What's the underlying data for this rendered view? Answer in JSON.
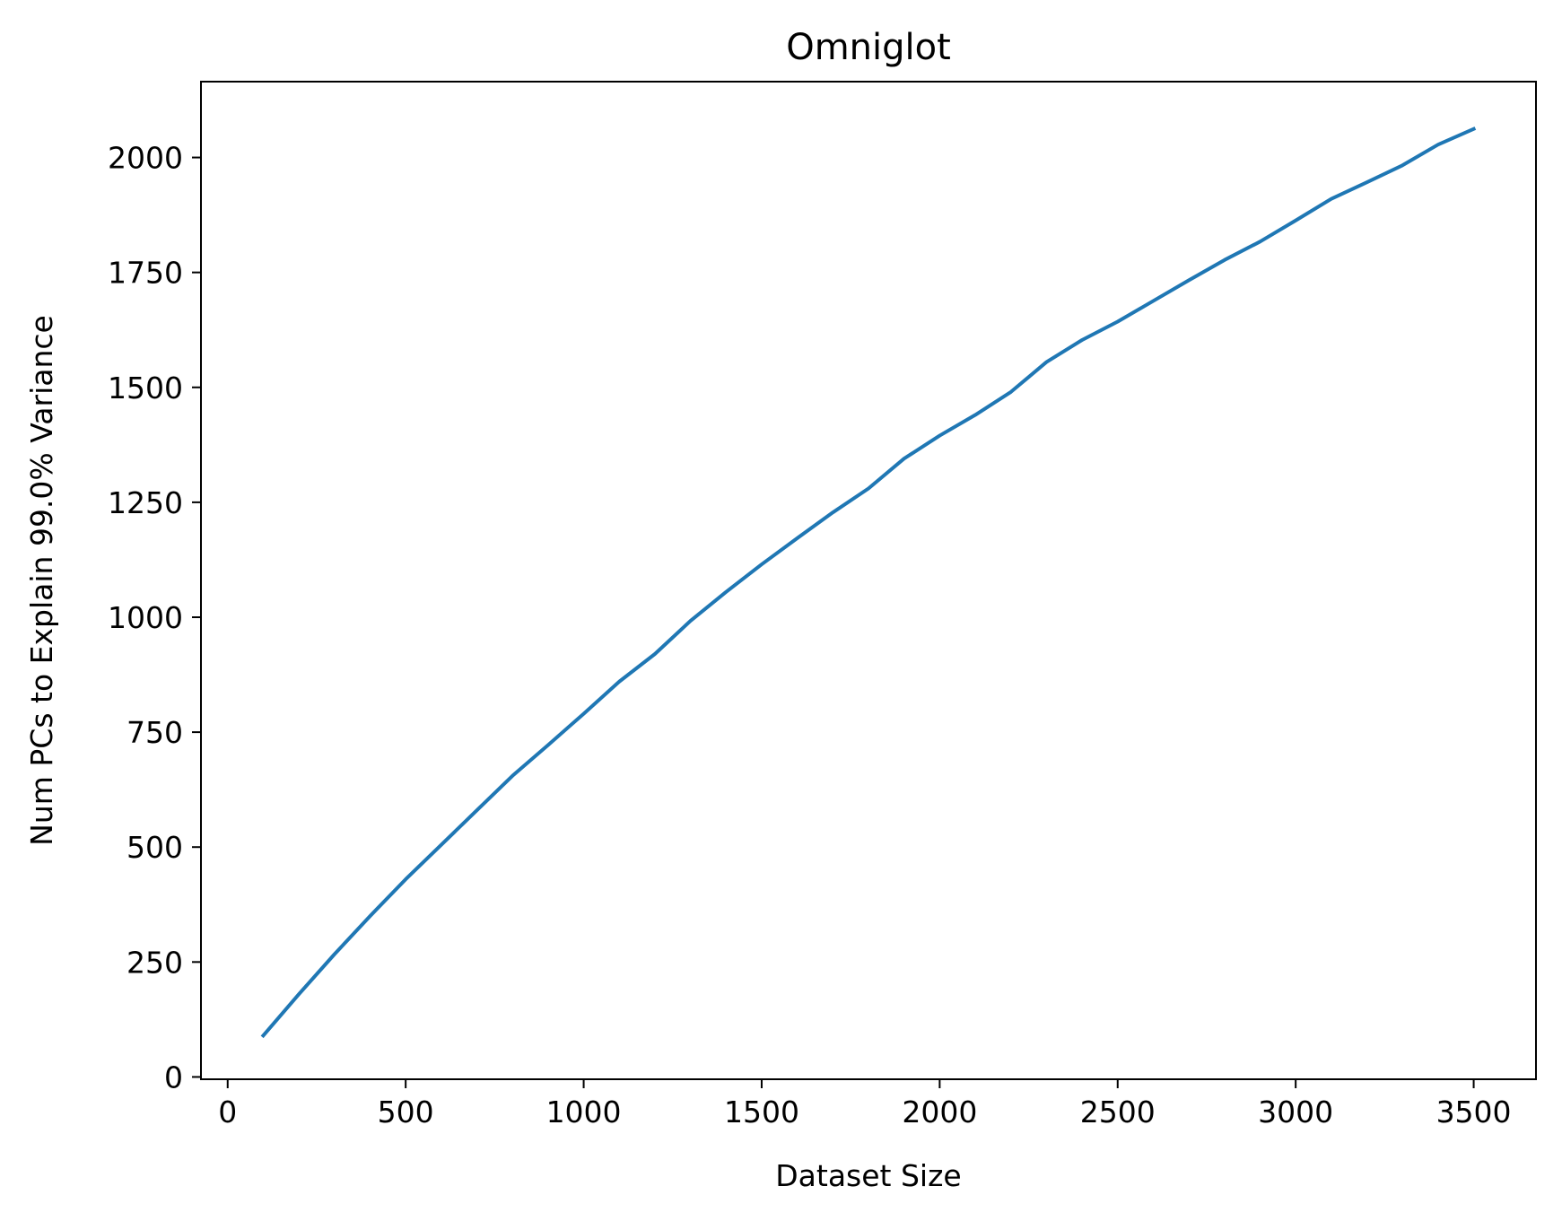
{
  "chart_data": {
    "type": "line",
    "title": "Omniglot",
    "xlabel": "Dataset Size",
    "ylabel": "Num PCs to Explain 99.0% Variance",
    "xlim": [
      -75,
      3675
    ],
    "ylim": [
      -5,
      2165
    ],
    "x_ticks": [
      0,
      500,
      1000,
      1500,
      2000,
      2500,
      3000,
      3500
    ],
    "x_tick_labels": [
      "0",
      "500",
      "1000",
      "1500",
      "2000",
      "2500",
      "3000",
      "3500"
    ],
    "y_ticks": [
      0,
      250,
      500,
      750,
      1000,
      1250,
      1500,
      1750,
      2000
    ],
    "y_tick_labels": [
      "0",
      "250",
      "500",
      "750",
      "1000",
      "1250",
      "1500",
      "1750",
      "2000"
    ],
    "grid": false,
    "series": [
      {
        "color": "#1f77b4",
        "x": [
          100,
          200,
          300,
          400,
          500,
          600,
          700,
          800,
          900,
          1000,
          1100,
          1200,
          1300,
          1400,
          1500,
          1600,
          1700,
          1800,
          1900,
          2000,
          2100,
          2200,
          2300,
          2400,
          2500,
          2600,
          2700,
          2800,
          2900,
          3000,
          3100,
          3200,
          3300,
          3400,
          3500
        ],
        "y": [
          90,
          180,
          267,
          350,
          430,
          505,
          580,
          655,
          722,
          790,
          860,
          920,
          992,
          1055,
          1115,
          1172,
          1228,
          1280,
          1345,
          1395,
          1440,
          1490,
          1555,
          1603,
          1643,
          1688,
          1733,
          1777,
          1817,
          1863,
          1910,
          1946,
          1983,
          2028,
          2062
        ]
      }
    ]
  }
}
